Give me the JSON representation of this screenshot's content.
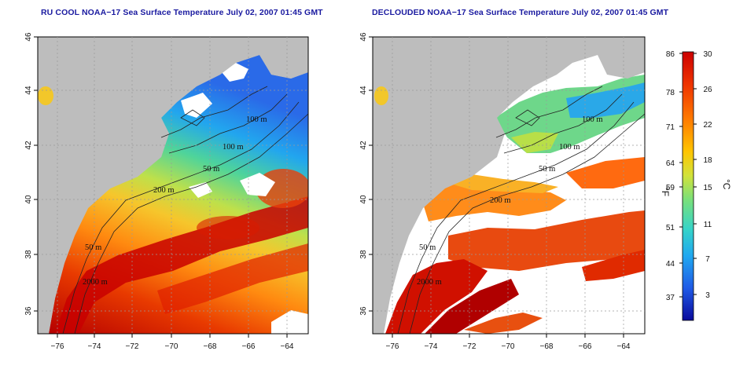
{
  "left_panel": {
    "title": "RU COOL NOAA−17 Sea Surface Temperature July 02, 2007 01:45 GMT",
    "contour_labels": [
      "100 m",
      "100 m",
      "50 m",
      "200 m",
      "50 m",
      "2000 m"
    ]
  },
  "right_panel": {
    "title": "DECLOUDED NOAA−17 Sea Surface Temperature July 02, 2007 01:45 GMT",
    "contour_labels": [
      "100 m",
      "100 m",
      "50 m",
      "200 m",
      "50 m",
      "2000 m"
    ]
  },
  "axes": {
    "x_ticks": [
      "−76",
      "−74",
      "−72",
      "−70",
      "−68",
      "−66",
      "−64"
    ],
    "y_ticks": [
      "36",
      "38",
      "40",
      "42",
      "44",
      "46"
    ]
  },
  "colorbar": {
    "fahrenheit_ticks": [
      "86",
      "78",
      "71",
      "64",
      "59",
      "51",
      "44",
      "37"
    ],
    "celsius_ticks": [
      "30",
      "26",
      "22",
      "18",
      "15",
      "11",
      "7",
      "3"
    ],
    "fahrenheit_unit": "°F",
    "celsius_unit": "°C",
    "colors": [
      "#cc0000",
      "#ee3300",
      "#ff7a00",
      "#ffc400",
      "#d2e23a",
      "#7ae07a",
      "#36d4c8",
      "#20a8f0",
      "#1f5ae6",
      "#0a0a9c"
    ]
  },
  "map_colors": {
    "land": "#bdbdbd",
    "cloud": "#ffffff",
    "grid": "#9a9a9a"
  }
}
